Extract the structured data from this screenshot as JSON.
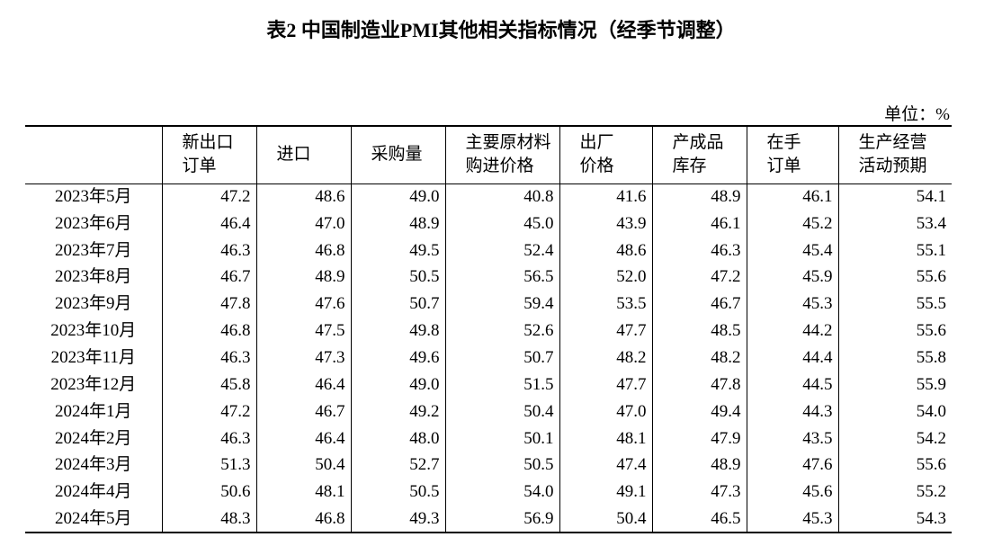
{
  "title": "表2 中国制造业PMI其他相关指标情况（经季节调整）",
  "unit": "单位：%",
  "table": {
    "header": [
      [
        "新出口",
        "订单"
      ],
      [
        "进口"
      ],
      [
        "采购量"
      ],
      [
        "主要原材料",
        "购进价格"
      ],
      [
        "出厂",
        "价格"
      ],
      [
        "产成品",
        "库存"
      ],
      [
        "在手",
        "订单"
      ],
      [
        "生产经营",
        "活动预期"
      ]
    ],
    "rows": [
      [
        "2023年5月",
        "47.2",
        "48.6",
        "49.0",
        "40.8",
        "41.6",
        "48.9",
        "46.1",
        "54.1"
      ],
      [
        "2023年6月",
        "46.4",
        "47.0",
        "48.9",
        "45.0",
        "43.9",
        "46.1",
        "45.2",
        "53.4"
      ],
      [
        "2023年7月",
        "46.3",
        "46.8",
        "49.5",
        "52.4",
        "48.6",
        "46.3",
        "45.4",
        "55.1"
      ],
      [
        "2023年8月",
        "46.7",
        "48.9",
        "50.5",
        "56.5",
        "52.0",
        "47.2",
        "45.9",
        "55.6"
      ],
      [
        "2023年9月",
        "47.8",
        "47.6",
        "50.7",
        "59.4",
        "53.5",
        "46.7",
        "45.3",
        "55.5"
      ],
      [
        "2023年10月",
        "46.8",
        "47.5",
        "49.8",
        "52.6",
        "47.7",
        "48.5",
        "44.2",
        "55.6"
      ],
      [
        "2023年11月",
        "46.3",
        "47.3",
        "49.6",
        "50.7",
        "48.2",
        "48.2",
        "44.4",
        "55.8"
      ],
      [
        "2023年12月",
        "45.8",
        "46.4",
        "49.0",
        "51.5",
        "47.7",
        "47.8",
        "44.5",
        "55.9"
      ],
      [
        "2024年1月",
        "47.2",
        "46.7",
        "49.2",
        "50.4",
        "47.0",
        "49.4",
        "44.3",
        "54.0"
      ],
      [
        "2024年2月",
        "46.3",
        "46.4",
        "48.0",
        "50.1",
        "48.1",
        "47.9",
        "43.5",
        "54.2"
      ],
      [
        "2024年3月",
        "51.3",
        "50.4",
        "52.7",
        "50.5",
        "47.4",
        "48.9",
        "47.6",
        "55.6"
      ],
      [
        "2024年4月",
        "50.6",
        "48.1",
        "50.5",
        "54.0",
        "49.1",
        "47.3",
        "45.6",
        "55.2"
      ],
      [
        "2024年5月",
        "48.3",
        "46.8",
        "49.3",
        "56.9",
        "50.4",
        "46.5",
        "45.3",
        "54.3"
      ]
    ]
  }
}
